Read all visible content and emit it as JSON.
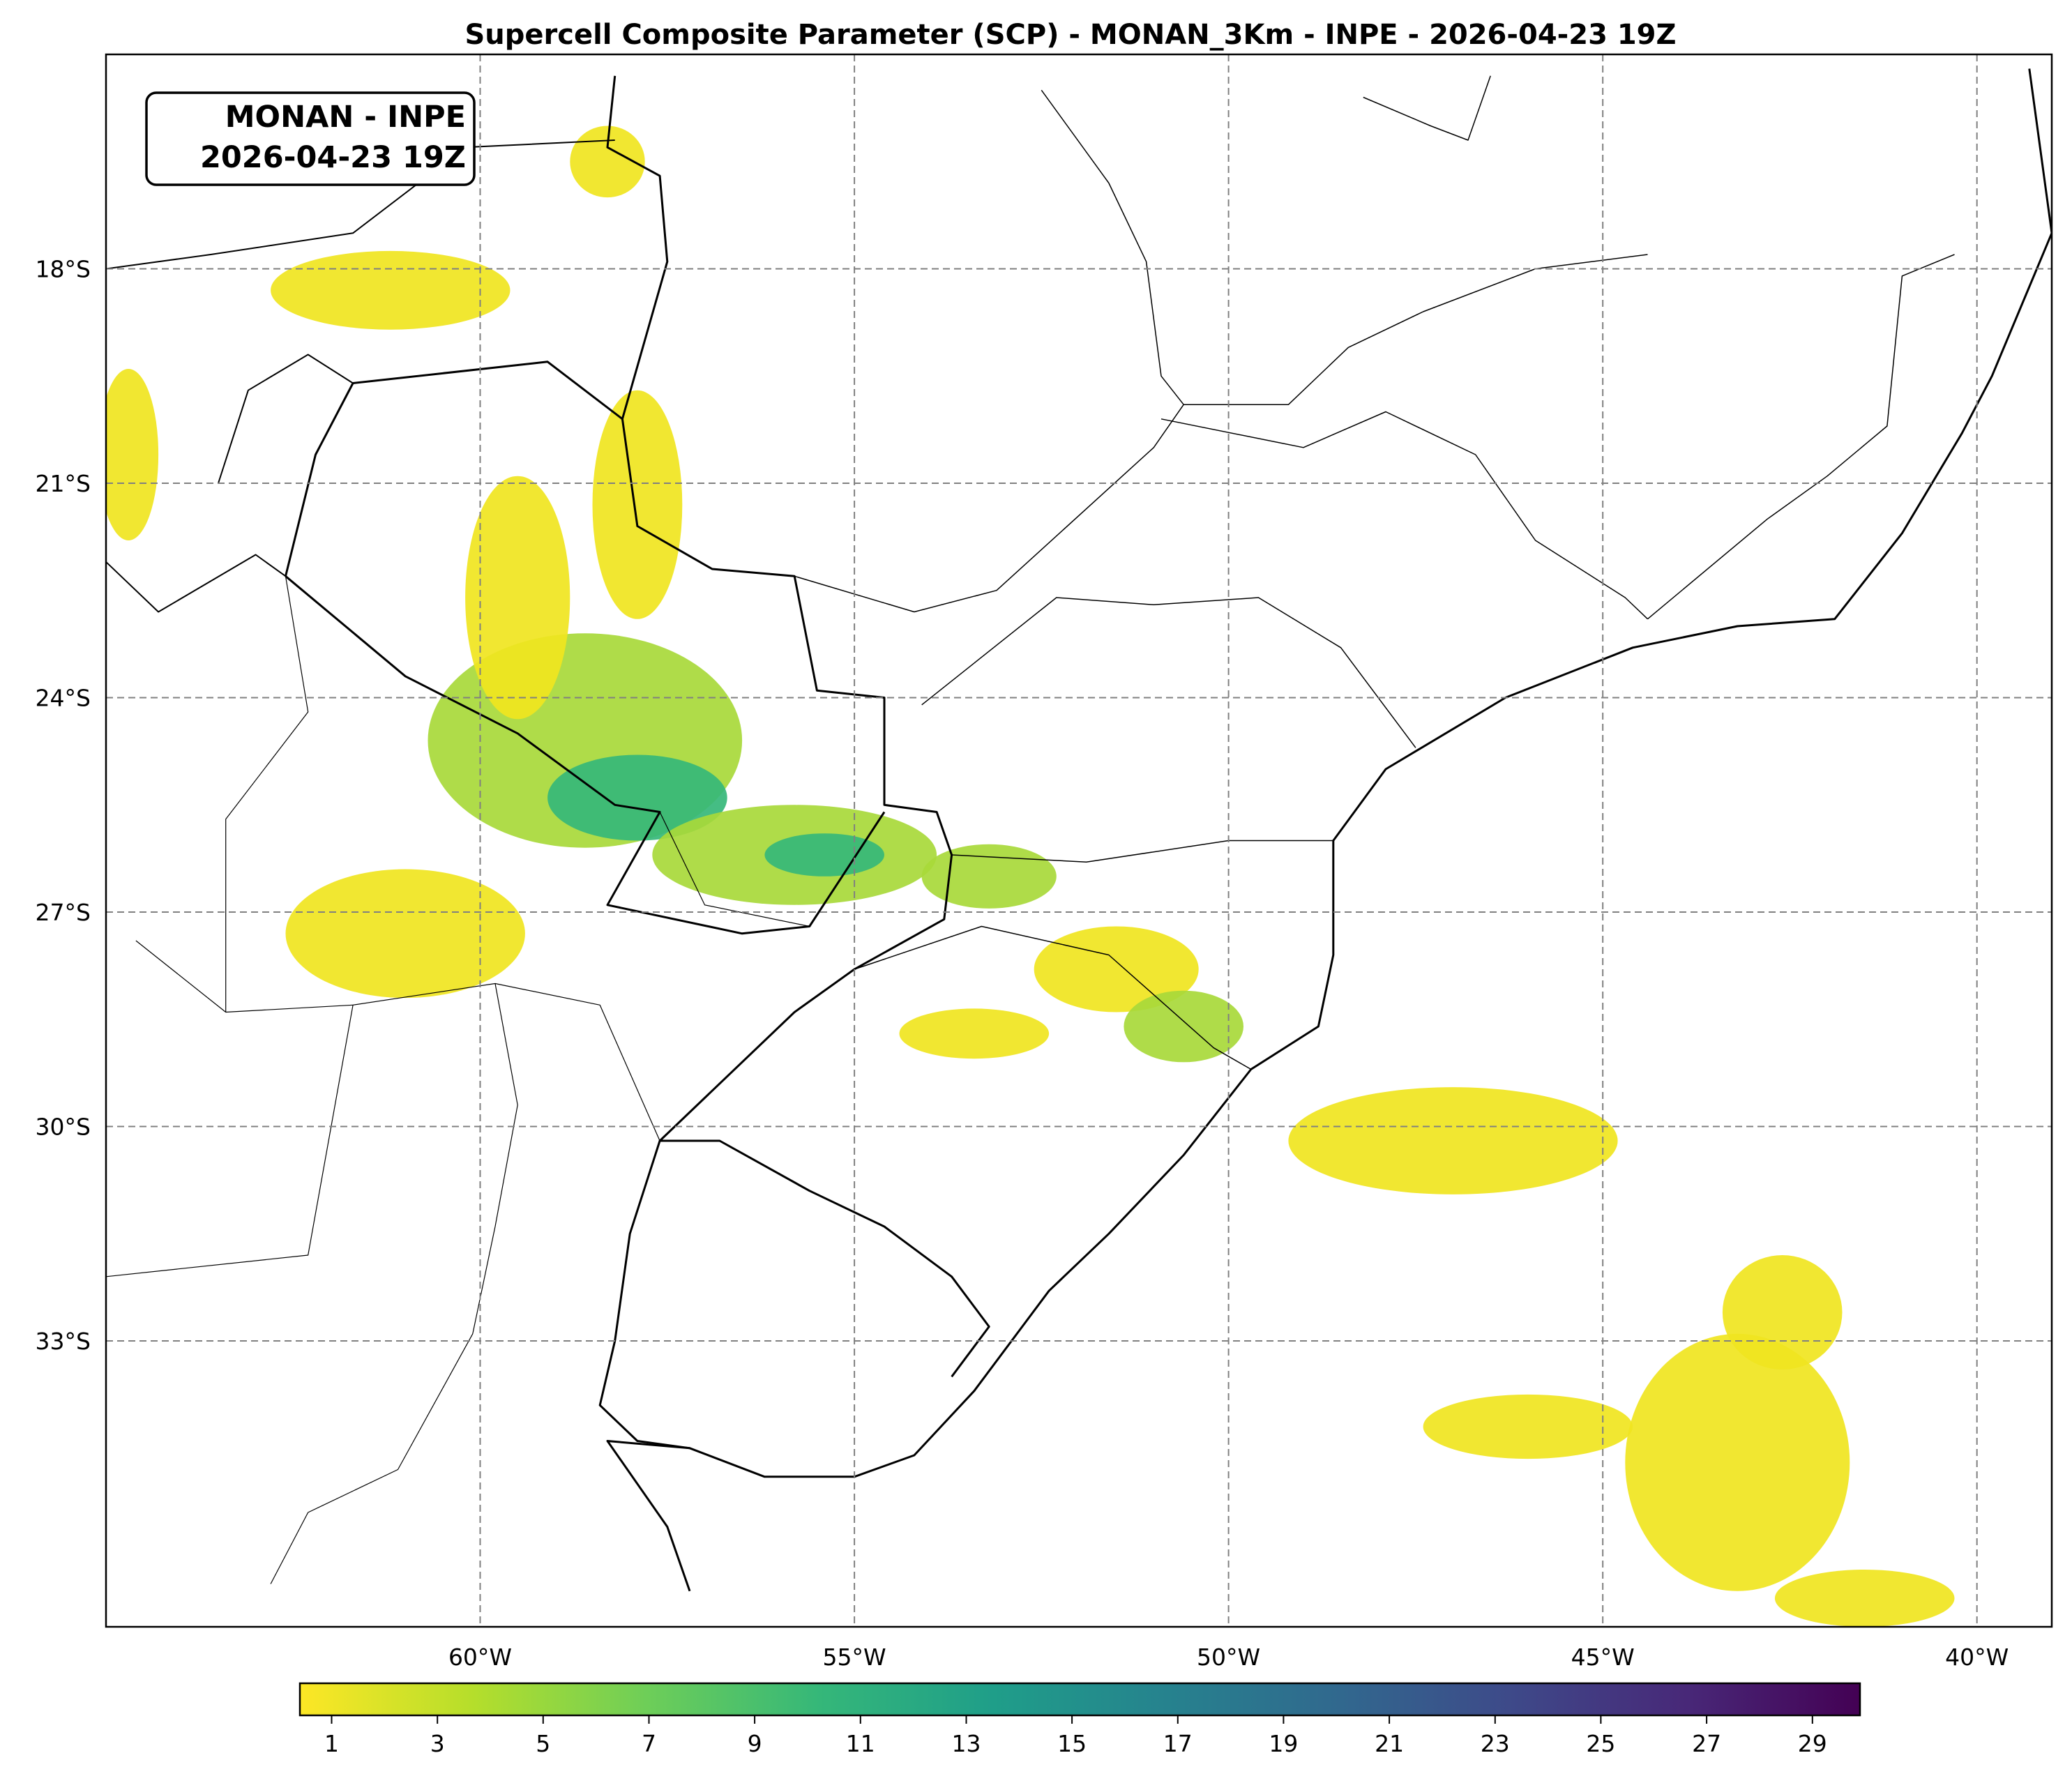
{
  "title": "Supercell Composite Parameter (SCP) - MONAN_3Km - INPE - 2026-04-23 19Z",
  "stamp": {
    "line1": "MONAN - INPE",
    "line2": "2026-04-23 19Z"
  },
  "map": {
    "lon_range": [
      -65,
      -39
    ],
    "lat_range": [
      -37,
      -15
    ],
    "gridlines": "dashed",
    "lon_ticks": [
      {
        "value": -60,
        "label": "60°W"
      },
      {
        "value": -55,
        "label": "55°W"
      },
      {
        "value": -50,
        "label": "50°W"
      },
      {
        "value": -45,
        "label": "45°W"
      },
      {
        "value": -40,
        "label": "40°W"
      }
    ],
    "lat_ticks": [
      {
        "value": -18,
        "label": "18°S"
      },
      {
        "value": -21,
        "label": "21°S"
      },
      {
        "value": -24,
        "label": "24°S"
      },
      {
        "value": -27,
        "label": "27°S"
      },
      {
        "value": -30,
        "label": "30°S"
      },
      {
        "value": -33,
        "label": "33°S"
      }
    ],
    "field_colors": {
      "low": "#f0e51f",
      "mid": "#a8d93a",
      "high": "#35b779"
    },
    "field_regions": [
      {
        "lon": -61.0,
        "lat": -27.3,
        "rlon": 1.6,
        "rlat": 0.9,
        "level": 1.5
      },
      {
        "lon": -58.6,
        "lat": -24.6,
        "rlon": 2.1,
        "rlat": 1.5,
        "level": 4
      },
      {
        "lon": -57.9,
        "lat": -25.4,
        "rlon": 1.2,
        "rlat": 0.6,
        "level": 7
      },
      {
        "lon": -59.5,
        "lat": -22.6,
        "rlon": 0.7,
        "rlat": 1.7,
        "level": 1.5
      },
      {
        "lon": -57.9,
        "lat": -21.3,
        "rlon": 0.6,
        "rlat": 1.6,
        "level": 1.5
      },
      {
        "lon": -55.8,
        "lat": -26.2,
        "rlon": 1.9,
        "rlat": 0.7,
        "level": 5
      },
      {
        "lon": -55.4,
        "lat": -26.2,
        "rlon": 0.8,
        "rlat": 0.3,
        "level": 8
      },
      {
        "lon": -53.2,
        "lat": -26.5,
        "rlon": 0.9,
        "rlat": 0.45,
        "level": 3
      },
      {
        "lon": -51.5,
        "lat": -27.8,
        "rlon": 1.1,
        "rlat": 0.6,
        "level": 1.5
      },
      {
        "lon": -50.6,
        "lat": -28.6,
        "rlon": 0.8,
        "rlat": 0.5,
        "level": 3
      },
      {
        "lon": -53.4,
        "lat": -28.7,
        "rlon": 1.0,
        "rlat": 0.35,
        "level": 1.5
      },
      {
        "lon": -47.0,
        "lat": -30.2,
        "rlon": 2.2,
        "rlat": 0.75,
        "level": 2
      },
      {
        "lon": -43.2,
        "lat": -34.7,
        "rlon": 1.5,
        "rlat": 1.8,
        "level": 1.5
      },
      {
        "lon": -42.6,
        "lat": -32.6,
        "rlon": 0.8,
        "rlat": 0.8,
        "level": 1.5
      },
      {
        "lon": -46.0,
        "lat": -34.2,
        "rlon": 1.4,
        "rlat": 0.45,
        "level": 1.5
      },
      {
        "lon": -61.2,
        "lat": -18.3,
        "rlon": 1.6,
        "rlat": 0.55,
        "level": 1.5
      },
      {
        "lon": -64.7,
        "lat": -20.6,
        "rlon": 0.4,
        "rlat": 1.2,
        "level": 2
      },
      {
        "lon": -58.3,
        "lat": -16.5,
        "rlon": 0.5,
        "rlat": 0.5,
        "level": 1.5
      },
      {
        "lon": -41.5,
        "lat": -36.6,
        "rlon": 1.2,
        "rlat": 0.4,
        "level": 1.5
      }
    ]
  },
  "colorbar": {
    "colors": [
      "#fde725",
      "#b5de2b",
      "#6ece58",
      "#35b779",
      "#1f9e89",
      "#26828e",
      "#31688e",
      "#3e4989",
      "#482878",
      "#440154"
    ],
    "ticks": [
      "1",
      "3",
      "5",
      "7",
      "9",
      "11",
      "13",
      "15",
      "17",
      "19",
      "21",
      "23",
      "25",
      "27",
      "29"
    ]
  }
}
